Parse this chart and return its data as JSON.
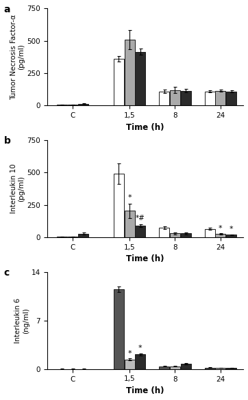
{
  "panel_a": {
    "label": "a",
    "ylabel": "Tumor Necrosis Factor-α\n(pg/ml)",
    "xlabel": "Time (h)",
    "ylim": [
      0,
      750
    ],
    "yticks": [
      0,
      250,
      500,
      750
    ],
    "xtick_labels": [
      "C",
      "1,5",
      "8",
      "24"
    ],
    "values": [
      [
        5,
        360,
        110,
        110
      ],
      [
        5,
        510,
        120,
        115
      ],
      [
        15,
        415,
        115,
        110
      ]
    ],
    "errors": [
      [
        2,
        20,
        12,
        8
      ],
      [
        2,
        75,
        22,
        8
      ],
      [
        4,
        25,
        15,
        8
      ]
    ]
  },
  "panel_b": {
    "label": "b",
    "ylabel": "Interleukin 10\n(pg/ml)",
    "xlabel": "Time (h)",
    "ylim": [
      0,
      750
    ],
    "yticks": [
      0,
      250,
      500,
      750
    ],
    "xtick_labels": [
      "C",
      "1,5",
      "8",
      "24"
    ],
    "values": [
      [
        5,
        490,
        75,
        65
      ],
      [
        5,
        205,
        30,
        25
      ],
      [
        28,
        90,
        30,
        20
      ]
    ],
    "errors": [
      [
        2,
        80,
        10,
        8
      ],
      [
        2,
        55,
        8,
        5
      ],
      [
        7,
        12,
        7,
        4
      ]
    ],
    "annot_b_gray_15": "*",
    "annot_b_black_15": "*#",
    "annot_b_gray_24": "*",
    "annot_b_black_24": "*"
  },
  "panel_c": {
    "label": "c",
    "ylabel": "Interleukin 6\n(ng/ml)",
    "xlabel": "Time (h)",
    "ylim": [
      0,
      14
    ],
    "yticks": [
      0,
      7,
      14
    ],
    "xtick_labels": [
      "C",
      "1,5",
      "8",
      "24"
    ],
    "values": [
      [
        0.02,
        11.5,
        0.4,
        0.22
      ],
      [
        0.02,
        1.4,
        0.38,
        0.18
      ],
      [
        0.02,
        2.1,
        0.75,
        0.18
      ]
    ],
    "errors": [
      [
        0.01,
        0.35,
        0.07,
        0.04
      ],
      [
        0.01,
        0.12,
        0.05,
        0.03
      ],
      [
        0.01,
        0.18,
        0.09,
        0.03
      ]
    ],
    "annot_c_gray_15": "*",
    "annot_c_black_15": "*"
  },
  "bar_colors_a": [
    "#ffffff",
    "#aaaaaa",
    "#2b2b2b"
  ],
  "bar_colors_b": [
    "#ffffff",
    "#aaaaaa",
    "#2b2b2b"
  ],
  "bar_colors_c": [
    "#555555",
    "#bbbbbb",
    "#2b2b2b"
  ],
  "edge_color": "#1a1a1a",
  "background": "white",
  "font_size": 7.5,
  "xlabel_font_size": 8.5,
  "panel_label_size": 10,
  "bar_width": 0.18,
  "x_positions": [
    0.0,
    1.0,
    1.8,
    2.6
  ],
  "group_offsets": [
    -0.19,
    0.0,
    0.19
  ]
}
